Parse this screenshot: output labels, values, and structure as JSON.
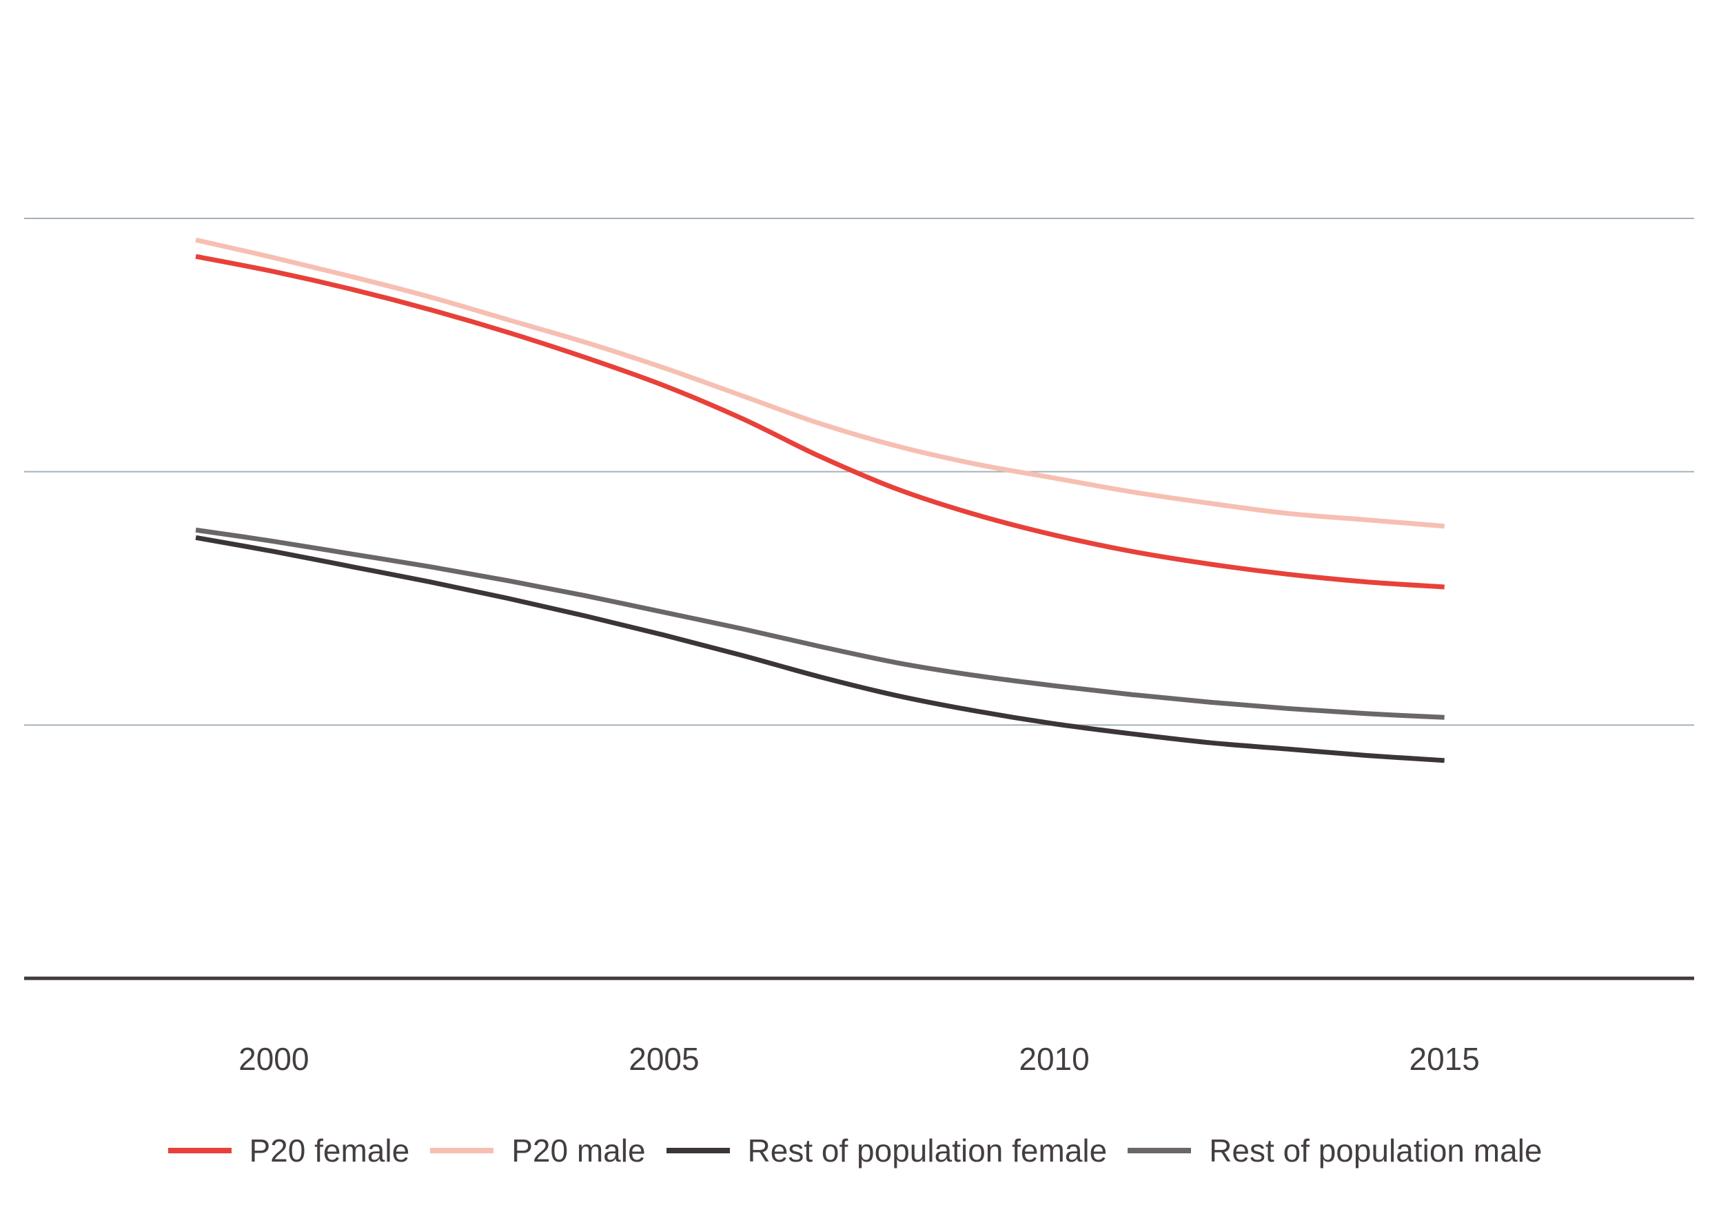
{
  "chart_data": {
    "type": "line",
    "title": "",
    "xlabel": "",
    "ylabel": "",
    "x": [
      1999,
      2000,
      2001,
      2002,
      2003,
      2004,
      2005,
      2006,
      2007,
      2008,
      2009,
      2010,
      2011,
      2012,
      2013,
      2014,
      2015
    ],
    "x_ticks": [
      "2000",
      "2005",
      "2010",
      "2015"
    ],
    "xlim": [
      1996.8,
      2018.2
    ],
    "ylim": [
      0,
      6
    ],
    "y_gridlines": [
      2,
      4,
      6
    ],
    "y_tick_labels_visible": false,
    "grid": "horizontal",
    "legend_position": "bottom",
    "series": [
      {
        "name": "P20 female",
        "color": "#e8413a",
        "values": [
          5.7,
          5.58,
          5.44,
          5.28,
          5.1,
          4.9,
          4.68,
          4.42,
          4.12,
          3.86,
          3.66,
          3.5,
          3.37,
          3.27,
          3.19,
          3.13,
          3.09
        ]
      },
      {
        "name": "P20 male",
        "color": "#f6bfb2",
        "values": [
          5.83,
          5.69,
          5.54,
          5.38,
          5.2,
          5.02,
          4.82,
          4.6,
          4.38,
          4.2,
          4.06,
          3.95,
          3.84,
          3.75,
          3.67,
          3.62,
          3.57
        ]
      },
      {
        "name": "Rest of population female",
        "color": "#3b3538",
        "values": [
          3.48,
          3.37,
          3.25,
          3.13,
          3.0,
          2.86,
          2.71,
          2.55,
          2.38,
          2.23,
          2.11,
          2.01,
          1.93,
          1.86,
          1.81,
          1.76,
          1.72
        ]
      },
      {
        "name": "Rest of population male",
        "color": "#6b6769",
        "values": [
          3.54,
          3.45,
          3.35,
          3.25,
          3.14,
          3.02,
          2.89,
          2.76,
          2.62,
          2.49,
          2.39,
          2.31,
          2.24,
          2.18,
          2.13,
          2.09,
          2.06
        ]
      }
    ]
  }
}
